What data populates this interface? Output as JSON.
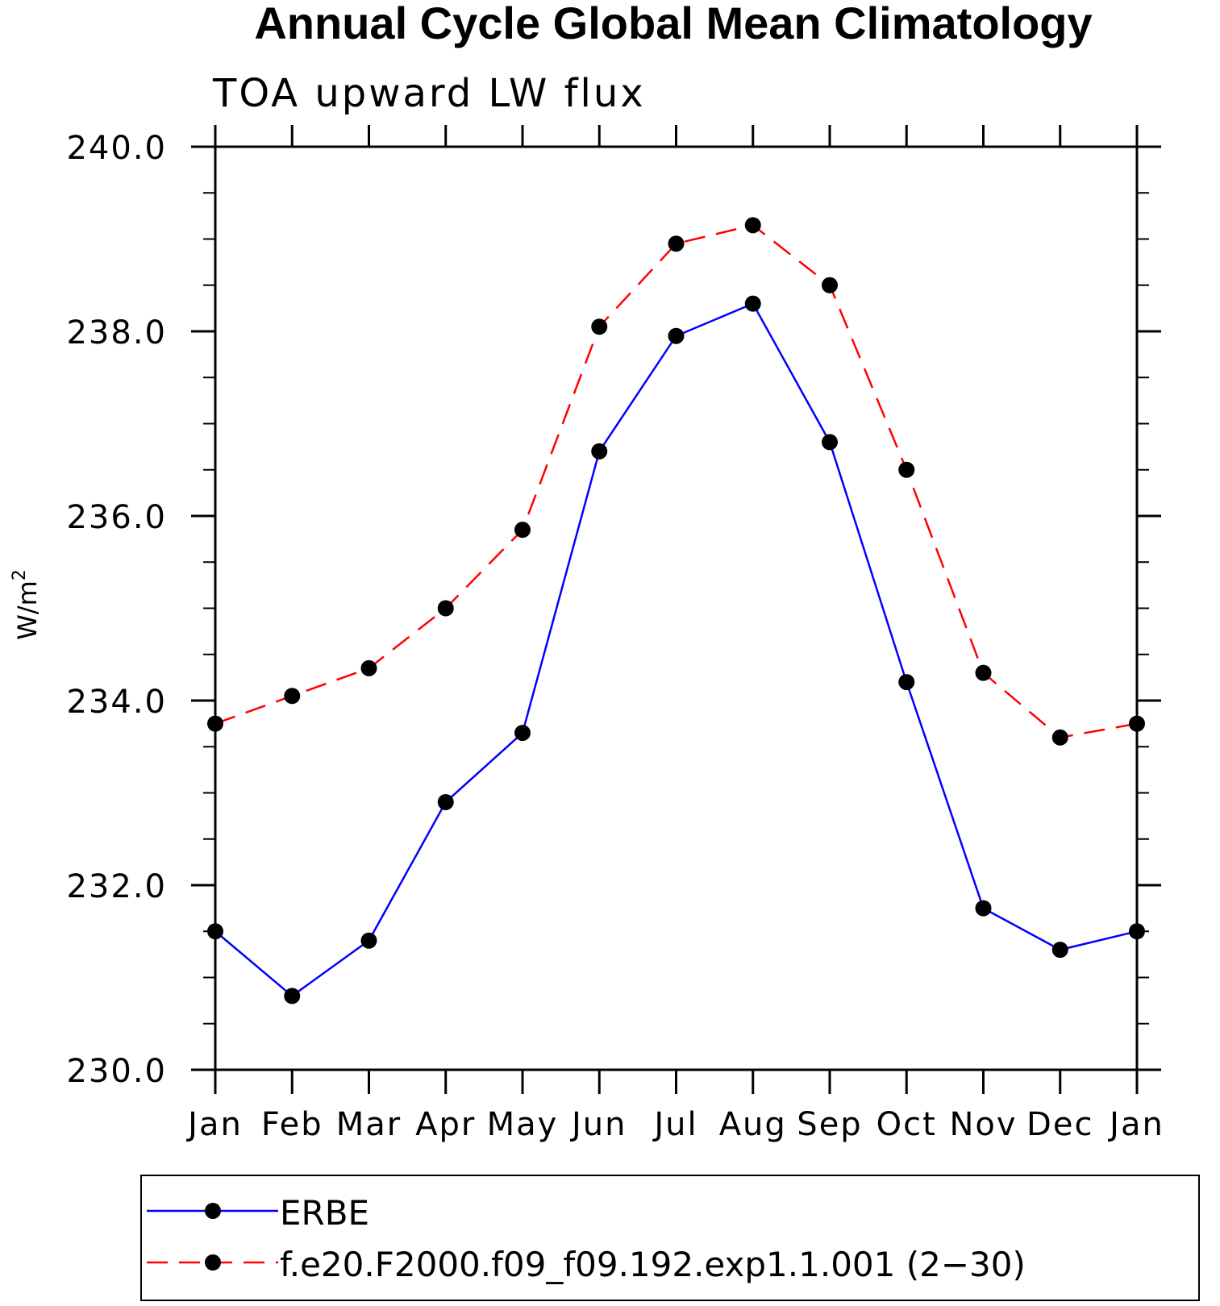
{
  "chart_data": {
    "type": "line",
    "title": "Annual Cycle Global Mean Climatology",
    "subtitle": "TOA upward LW flux",
    "ylabel_base": "W/m",
    "ylabel_sup": "2",
    "xlabel": "",
    "categories": [
      "Jan",
      "Feb",
      "Mar",
      "Apr",
      "May",
      "Jun",
      "Jul",
      "Aug",
      "Sep",
      "Oct",
      "Nov",
      "Dec",
      "Jan"
    ],
    "ylim": [
      230.0,
      240.0
    ],
    "yticks": [
      "230.0",
      "232.0",
      "234.0",
      "236.0",
      "238.0",
      "240.0"
    ],
    "series": [
      {
        "name": "ERBE",
        "color": "#0000ff",
        "dash": "solid",
        "values": [
          231.5,
          230.8,
          231.4,
          232.9,
          233.65,
          236.7,
          237.95,
          238.3,
          236.8,
          234.2,
          231.75,
          231.3,
          231.5
        ]
      },
      {
        "name": "f.e20.F2000.f09_f09.192.exp1.1.001 (2−30)",
        "color": "#ff0000",
        "dash": "dashed",
        "values": [
          233.75,
          234.05,
          234.35,
          235.0,
          235.85,
          238.05,
          238.95,
          239.15,
          238.5,
          236.5,
          234.3,
          233.6,
          233.75
        ]
      }
    ]
  }
}
